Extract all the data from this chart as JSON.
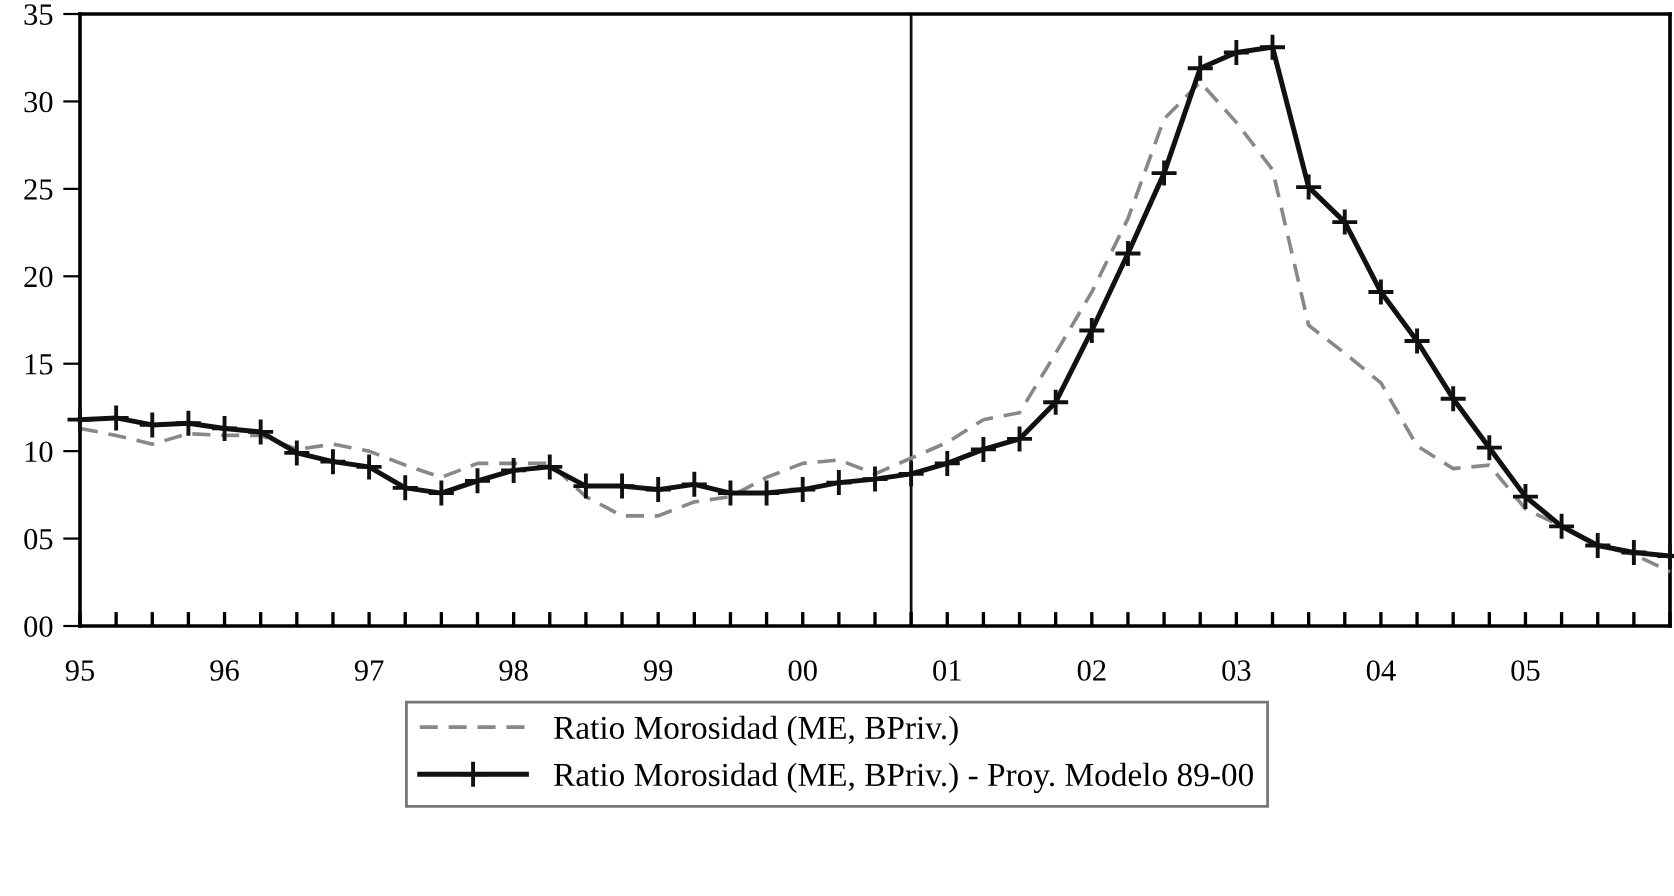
{
  "chart_data": {
    "type": "line",
    "categories": [
      "95",
      null,
      null,
      null,
      "96",
      null,
      null,
      null,
      "97",
      null,
      null,
      null,
      "98",
      null,
      null,
      null,
      "99",
      null,
      null,
      null,
      "00",
      null,
      null,
      null,
      "01",
      null,
      null,
      null,
      "02",
      null,
      null,
      null,
      "03",
      null,
      null,
      null,
      "04",
      null,
      null,
      null,
      "05",
      null,
      null,
      null,
      null
    ],
    "series": [
      {
        "name": "Ratio Morosidad (ME, BPriv.)",
        "color": "#888888",
        "line_style": "dashed",
        "marker": "none",
        "values": [
          11.3,
          10.9,
          10.4,
          11.0,
          10.9,
          10.9,
          10.1,
          10.4,
          10.0,
          9.2,
          8.5,
          9.3,
          9.3,
          9.3,
          7.4,
          6.3,
          6.3,
          7.1,
          7.4,
          8.5,
          9.3,
          9.5,
          8.7,
          9.6,
          10.5,
          11.8,
          12.2,
          15.6,
          19.1,
          23.3,
          29.0,
          31.1,
          28.8,
          26.1,
          17.2,
          15.6,
          13.9,
          10.3,
          9.0,
          9.2,
          6.7,
          5.7,
          4.6,
          4.1,
          3.1
        ]
      },
      {
        "name": "Ratio Morosidad (ME, BPriv.) - Proy. Modelo 89-00",
        "color": "#111111",
        "line_style": "solid",
        "marker": "cross",
        "values": [
          11.8,
          11.9,
          11.5,
          11.6,
          11.3,
          11.1,
          9.9,
          9.4,
          9.1,
          7.9,
          7.6,
          8.3,
          8.9,
          9.1,
          8.0,
          8.0,
          7.8,
          8.1,
          7.6,
          7.6,
          7.8,
          8.2,
          8.4,
          8.7,
          9.3,
          10.1,
          10.7,
          12.8,
          16.9,
          21.3,
          25.9,
          31.9,
          32.8,
          33.1,
          25.1,
          23.1,
          19.1,
          16.3,
          13.0,
          10.2,
          7.4,
          5.7,
          4.6,
          4.2,
          4.0
        ]
      }
    ],
    "ylim": [
      0,
      35
    ],
    "yticks": [
      {
        "value": 0,
        "label": "00"
      },
      {
        "value": 5,
        "label": "05"
      },
      10,
      15,
      20,
      25,
      30,
      35
    ],
    "legend": "bottom"
  }
}
